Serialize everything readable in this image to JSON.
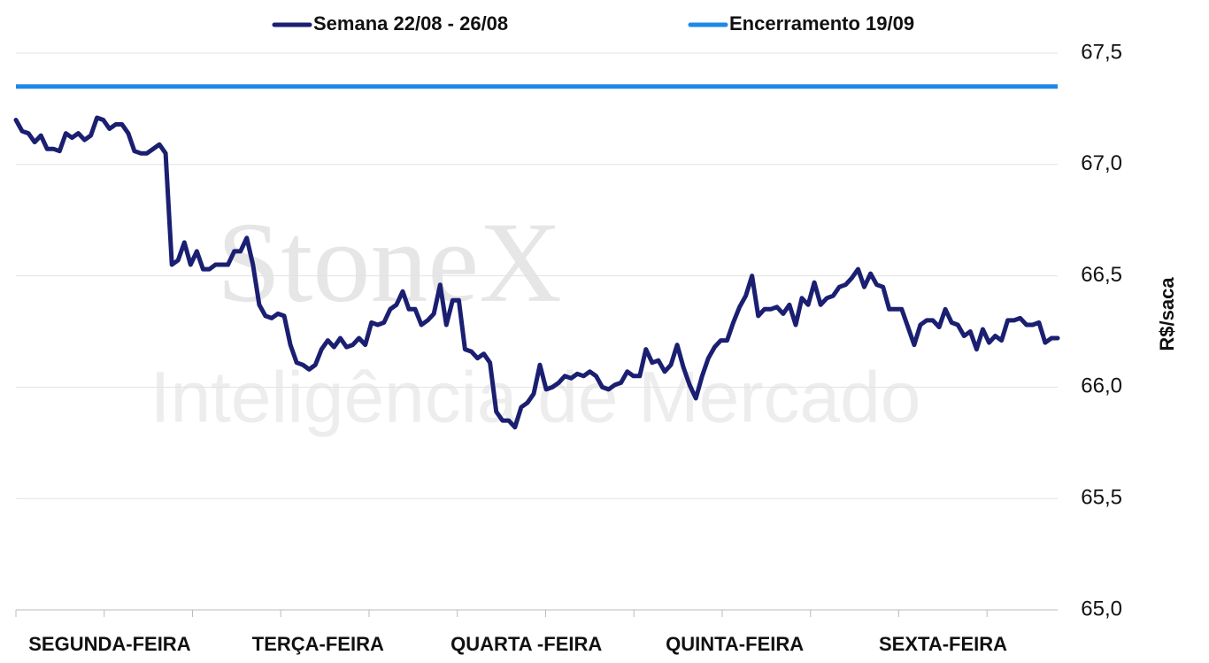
{
  "chart_data": {
    "type": "line",
    "watermark": [
      "StoneX",
      "Inteligência de Mercado"
    ],
    "y_label": "R$/saca",
    "x_labels": [
      "SEGUNDA-FEIRA",
      "TERÇA-FEIRA",
      "QUARTA -FEIRA",
      "QUINTA-FEIRA",
      "SEXTA-FEIRA"
    ],
    "ylim": [
      65.0,
      67.5
    ],
    "yticks": [
      {
        "value": 65.0,
        "label": "65,0"
      },
      {
        "value": 65.5,
        "label": "65,5"
      },
      {
        "value": 66.0,
        "label": "66,0"
      },
      {
        "value": 66.5,
        "label": "66,5"
      },
      {
        "value": 67.0,
        "label": "67,0"
      },
      {
        "value": 67.5,
        "label": "67,5"
      }
    ],
    "grid": true,
    "series": [
      {
        "name": "Semana 22/08 - 26/08",
        "color": "#1a1f71",
        "values": [
          67.2,
          67.15,
          67.14,
          67.1,
          67.13,
          67.07,
          67.07,
          67.06,
          67.14,
          67.12,
          67.14,
          67.11,
          67.13,
          67.21,
          67.2,
          67.16,
          67.18,
          67.18,
          67.14,
          67.06,
          67.05,
          67.05,
          67.07,
          67.09,
          67.05,
          66.55,
          66.57,
          66.65,
          66.55,
          66.61,
          66.53,
          66.53,
          66.55,
          66.55,
          66.55,
          66.61,
          66.61,
          66.67,
          66.55,
          66.37,
          66.32,
          66.31,
          66.33,
          66.32,
          66.19,
          66.11,
          66.1,
          66.08,
          66.1,
          66.17,
          66.21,
          66.18,
          66.22,
          66.18,
          66.19,
          66.22,
          66.19,
          66.29,
          66.28,
          66.29,
          66.35,
          66.37,
          66.43,
          66.35,
          66.35,
          66.28,
          66.3,
          66.33,
          66.46,
          66.28,
          66.39,
          66.39,
          66.17,
          66.16,
          66.13,
          66.15,
          66.11,
          65.89,
          65.85,
          65.85,
          65.82,
          65.91,
          65.93,
          65.97,
          66.1,
          65.99,
          66.0,
          66.02,
          66.05,
          66.04,
          66.06,
          66.05,
          66.07,
          66.05,
          66.0,
          65.99,
          66.01,
          66.02,
          66.07,
          66.05,
          66.05,
          66.17,
          66.11,
          66.12,
          66.07,
          66.1,
          66.19,
          66.09,
          66.01,
          65.95,
          66.05,
          66.13,
          66.18,
          66.21,
          66.21,
          66.29,
          66.36,
          66.41,
          66.5,
          66.32,
          66.35,
          66.35,
          66.36,
          66.33,
          66.37,
          66.28,
          66.4,
          66.37,
          66.47,
          66.37,
          66.4,
          66.41,
          66.45,
          66.46,
          66.49,
          66.53,
          66.45,
          66.51,
          66.46,
          66.45,
          66.35,
          66.35,
          66.35,
          66.27,
          66.19,
          66.28,
          66.3,
          66.3,
          66.27,
          66.35,
          66.29,
          66.28,
          66.23,
          66.25,
          66.17,
          66.26,
          66.2,
          66.23,
          66.21,
          66.3,
          66.3,
          66.31,
          66.28,
          66.28,
          66.29,
          66.2,
          66.22,
          66.22
        ]
      },
      {
        "name": "Encerramento 19/09",
        "color": "#1e88e5",
        "values": [
          67.35
        ]
      }
    ]
  }
}
